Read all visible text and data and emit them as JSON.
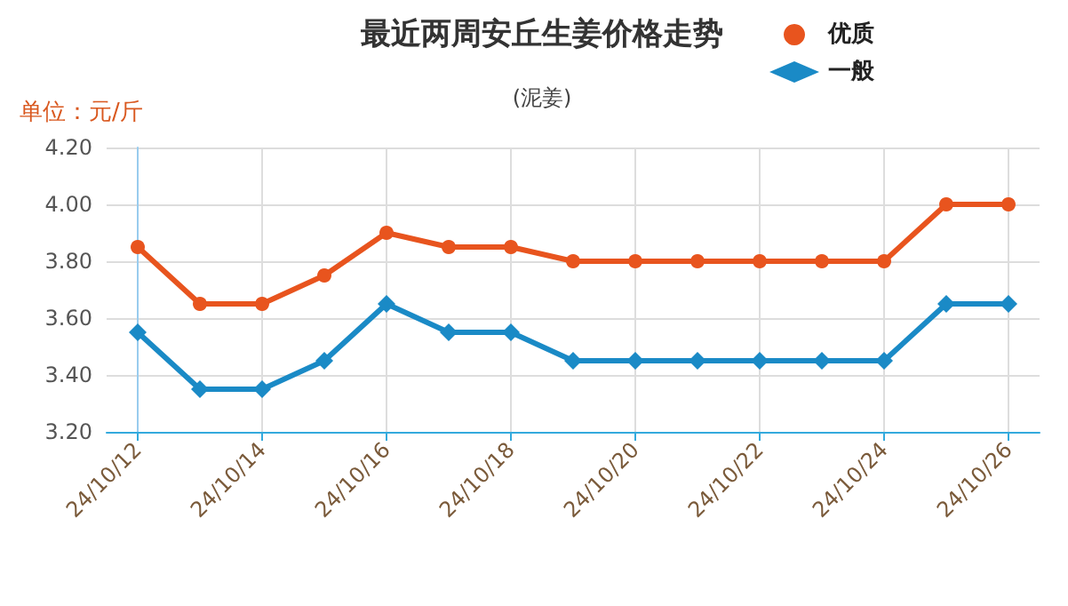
{
  "chart_data": {
    "type": "line",
    "title": "最近两周安丘生姜价格走势",
    "subtitle": "(泥姜)",
    "ylabel": "单位：元/斤",
    "categories": [
      "24/10/12",
      null,
      "24/10/14",
      null,
      "24/10/16",
      null,
      "24/10/18",
      null,
      "24/10/20",
      null,
      "24/10/22",
      null,
      "24/10/24",
      null,
      "24/10/26"
    ],
    "series": [
      {
        "name": "优质",
        "color": "#e8541e",
        "marker": "circle",
        "values": [
          3.85,
          3.65,
          3.65,
          3.75,
          3.9,
          3.85,
          3.85,
          3.8,
          3.8,
          3.8,
          3.8,
          3.8,
          3.8,
          4.0,
          4.0
        ]
      },
      {
        "name": "一般",
        "color": "#1a8ac6",
        "marker": "diamond",
        "values": [
          3.55,
          3.35,
          3.35,
          3.45,
          3.65,
          3.55,
          3.55,
          3.45,
          3.45,
          3.45,
          3.45,
          3.45,
          3.45,
          3.65,
          3.65
        ]
      }
    ],
    "ylim": [
      3.2,
      4.2
    ],
    "yticks": [
      {
        "value": 3.2,
        "label": "3.20"
      },
      {
        "value": 3.4,
        "label": "3.40"
      },
      {
        "value": 3.6,
        "label": "3.60"
      },
      {
        "value": 3.8,
        "label": "3.80"
      },
      {
        "value": 4.0,
        "label": "4.00"
      },
      {
        "value": 4.2,
        "label": "4.20"
      }
    ],
    "grid": true,
    "legend": "top right",
    "line_style": "solid"
  }
}
